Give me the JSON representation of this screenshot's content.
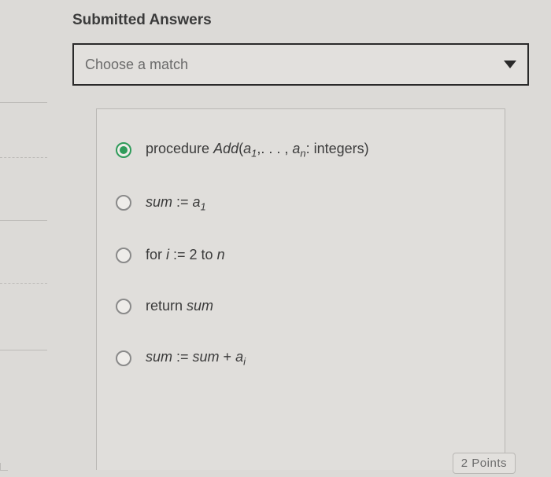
{
  "heading": "Submitted Answers",
  "dropdown": {
    "placeholder": "Choose a match"
  },
  "options": [
    {
      "selected": true,
      "html": "<span class='roman'>procedure </span>Add<span class='roman'>(</span>a<sub>1</sub><span class='roman'>,. . . , </span>a<sub>n</sub><span class='roman'>: integers)</span>"
    },
    {
      "selected": false,
      "html": "sum <span class='roman'>:=</span> a<sub>1</sub>"
    },
    {
      "selected": false,
      "html": "<span class='roman'>for </span>i <span class='roman'>:= 2 to </span>n"
    },
    {
      "selected": false,
      "html": "<span class='roman'>return </span>sum"
    },
    {
      "selected": false,
      "html": "sum <span class='roman'>:=</span> sum <span class='roman'>+</span> a<sub>i</sub>"
    }
  ],
  "points_label": "2 Points",
  "colors": {
    "page_bg": "#dcdad7",
    "panel_bg": "#e0dedb",
    "dropdown_bg": "#e2e0dd",
    "dropdown_border": "#2a2a2a",
    "text": "#3b3b3b",
    "placeholder": "#6b6b6b",
    "radio_border": "#8a8a8a",
    "radio_selected": "#2f9b5a",
    "divider": "#b9b7b4"
  }
}
